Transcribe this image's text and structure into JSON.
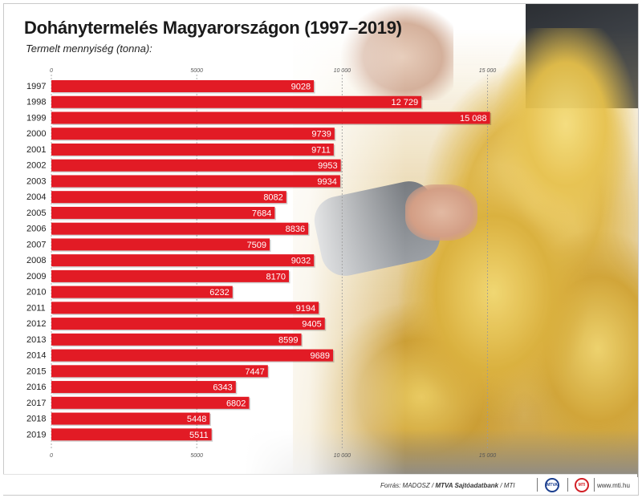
{
  "header": {
    "title": "Dohánytermelés Magyarországon (1997–2019)",
    "subtitle": "Termelt mennyiség (tonna):"
  },
  "chart_data": {
    "type": "bar",
    "orientation": "horizontal",
    "title": "Dohánytermelés Magyarországon (1997–2019)",
    "ylabel": "Termelt mennyiség (tonna):",
    "xlim": [
      0,
      15000
    ],
    "ticks": [
      0,
      5000,
      10000,
      15000
    ],
    "tick_labels": [
      "0",
      "5000",
      "10 000",
      "15 000"
    ],
    "grid": true,
    "categories": [
      "1997",
      "1998",
      "1999",
      "2000",
      "2001",
      "2002",
      "2003",
      "2004",
      "2005",
      "2006",
      "2007",
      "2008",
      "2009",
      "2010",
      "2011",
      "2012",
      "2013",
      "2014",
      "2015",
      "2016",
      "2017",
      "2018",
      "2019"
    ],
    "values": [
      9028,
      12729,
      15088,
      9739,
      9711,
      9953,
      9934,
      8082,
      7684,
      8836,
      7509,
      9032,
      8170,
      6232,
      9194,
      9405,
      8599,
      9689,
      7447,
      6343,
      6802,
      5448,
      5511
    ],
    "value_labels": [
      "9028",
      "12 729",
      "15 088",
      "9739",
      "9711",
      "9953",
      "9934",
      "8082",
      "7684",
      "8836",
      "7509",
      "9032",
      "8170",
      "6232",
      "9194",
      "9405",
      "8599",
      "9689",
      "7447",
      "6343",
      "6802",
      "5448",
      "5511"
    ],
    "bar_color": "#e21b25"
  },
  "footer": {
    "source_prefix": "Forrás: MADOSZ / ",
    "source_bold": "MTVA Sajtóadatbank",
    "source_suffix": " / MTI",
    "logo_mtva": "MTVA",
    "logo_mti": "MTI",
    "url": "www.mti.hu"
  }
}
